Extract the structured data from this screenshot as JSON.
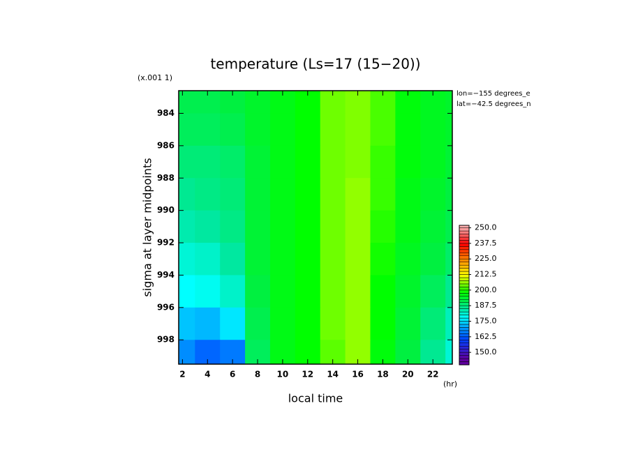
{
  "chart_data": {
    "type": "heatmap",
    "title": "temperature (Ls=17 (15−20))",
    "y_scale_note": "(x.001 1)",
    "annotations": [
      "lon=−155 degrees_e",
      "lat=−42.5 degrees_n"
    ],
    "x_label": "local time",
    "x_unit": "(hr)",
    "y_label": "sigma at layer midpoints",
    "x": [
      2,
      4,
      6,
      8,
      10,
      12,
      14,
      16,
      18,
      20,
      22,
      24
    ],
    "y": [
      983,
      985,
      987,
      989,
      991,
      993,
      995,
      997,
      999
    ],
    "z": [
      [
        191,
        191,
        192,
        194,
        196,
        198,
        204,
        205,
        202,
        197,
        195,
        194
      ],
      [
        190,
        190,
        191,
        194,
        196,
        198,
        204,
        205,
        202,
        197,
        195,
        194
      ],
      [
        188,
        188,
        189,
        193,
        196,
        198,
        204,
        205,
        201,
        197,
        195,
        193
      ],
      [
        186,
        187,
        188,
        193,
        196,
        198,
        204,
        206,
        201,
        196,
        194,
        192
      ],
      [
        184,
        185,
        187,
        193,
        196,
        198,
        204,
        206,
        200,
        196,
        193,
        191
      ],
      [
        181,
        182,
        185,
        193,
        196,
        198,
        204,
        206,
        199,
        195,
        192,
        189
      ],
      [
        178,
        179,
        182,
        192,
        196,
        198,
        204,
        206,
        198,
        194,
        190,
        186
      ],
      [
        173,
        172,
        176,
        191,
        196,
        198,
        204,
        206,
        198,
        193,
        188,
        183
      ],
      [
        168,
        164,
        166,
        190,
        196,
        198,
        203,
        206,
        197,
        192,
        186,
        181
      ]
    ],
    "xlim": [
      1.7,
      23.55
    ],
    "ylim": [
      982.6,
      999.5
    ],
    "y_reversed": true,
    "xticks": [
      2,
      4,
      6,
      8,
      10,
      12,
      14,
      16,
      18,
      20,
      22
    ],
    "yticks": [
      984,
      986,
      988,
      990,
      992,
      994,
      996,
      998
    ],
    "colorbar_lim": [
      140,
      252
    ],
    "colorbar_step": 2.5,
    "colorbar_ticks": [
      {
        "value": 150,
        "label": "150.0"
      },
      {
        "value": 162.5,
        "label": "162.5"
      },
      {
        "value": 175,
        "label": "175.0"
      },
      {
        "value": 187.5,
        "label": "187.5"
      },
      {
        "value": 200,
        "label": "200.0"
      },
      {
        "value": 212.5,
        "label": "212.5"
      },
      {
        "value": 225,
        "label": "225.0"
      },
      {
        "value": 237.5,
        "label": "237.5"
      },
      {
        "value": 250,
        "label": "250.0"
      }
    ],
    "colorscale": [
      [
        145,
        "#6000a0"
      ],
      [
        160,
        "#0040ff"
      ],
      [
        170,
        "#00a0ff"
      ],
      [
        178,
        "#00ffff"
      ],
      [
        185,
        "#00e8a0"
      ],
      [
        192,
        "#00f040"
      ],
      [
        198,
        "#00ff00"
      ],
      [
        205,
        "#80ff00"
      ],
      [
        212,
        "#ffff00"
      ],
      [
        225,
        "#ff8000"
      ],
      [
        237,
        "#ff0000"
      ],
      [
        250,
        "#ffb0b0"
      ]
    ]
  }
}
